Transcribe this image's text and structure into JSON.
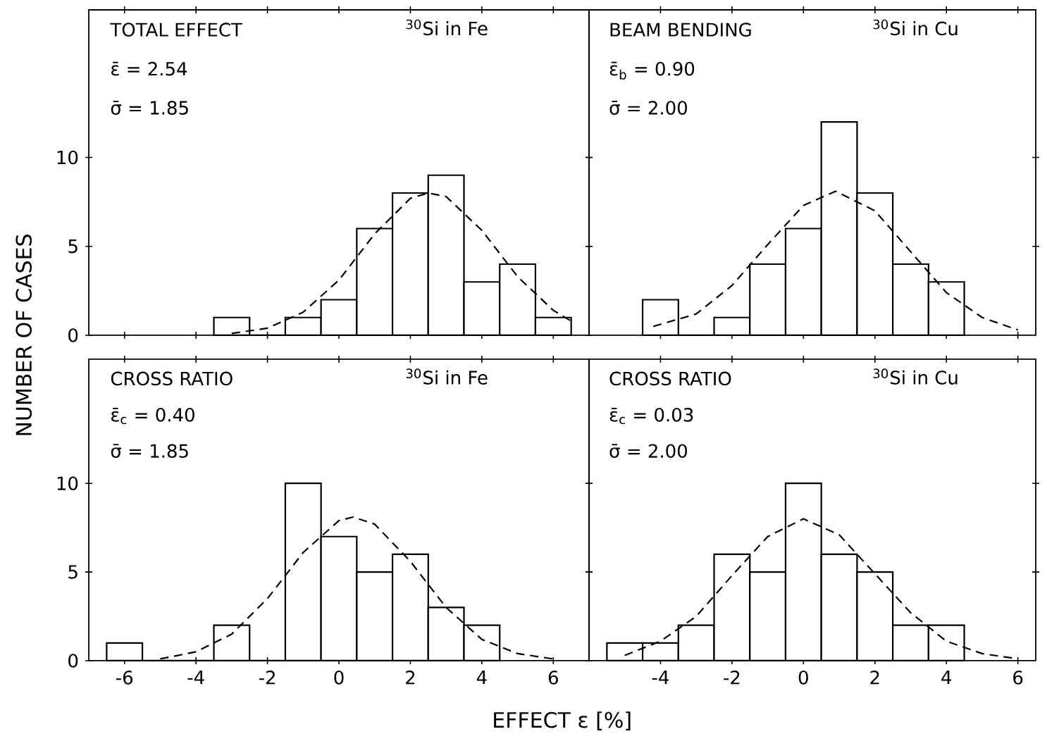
{
  "chart_data": [
    {
      "type": "histogram",
      "title": "TOTAL EFFECT",
      "subtitle": "$^{30}$Si in Fe",
      "ylabel": "NUMBER OF CASES",
      "annotations": [
        "ε̄ = 2.54",
        "σ̄ = 1.85"
      ],
      "xlim": [
        -7,
        7
      ],
      "ylim": [
        0,
        18.3
      ],
      "xticks": [
        -6,
        -4,
        -2,
        0,
        2,
        4,
        6
      ],
      "yticks": [
        0,
        5,
        10
      ],
      "tick_labels": "y",
      "series": [
        {
          "color": "#000000",
          "bins": [
            -3.5,
            -2.5,
            -1.5,
            -0.5,
            0.5,
            1.5,
            2.5,
            3.5,
            4.5,
            5.5,
            6.5
          ],
          "values": [
            1,
            0,
            1,
            2,
            6,
            8,
            9,
            3,
            4,
            1
          ]
        },
        {
          "type": "line",
          "color": "#000000",
          "line_style": "dashed",
          "x": [
            -3,
            -2,
            -1,
            0,
            1,
            2,
            2.5,
            3,
            4,
            5,
            6,
            6.5
          ],
          "values": [
            0.1,
            0.4,
            1.3,
            3.1,
            5.7,
            7.7,
            8.0,
            7.8,
            5.9,
            3.3,
            1.4,
            0.8
          ]
        }
      ]
    },
    {
      "type": "histogram",
      "title": "BEAM BENDING",
      "subtitle": "$^{30}$Si in Cu",
      "annotations": [
        "ε̄$_{b}$ = 0.90",
        "σ̄ = 2.00"
      ],
      "xlim": [
        -6,
        6.5
      ],
      "ylim": [
        0,
        18.3
      ],
      "xticks": [
        -4,
        -2,
        0,
        2,
        4,
        6
      ],
      "yticks": [
        5,
        10
      ],
      "tick_labels": false,
      "series": [
        {
          "color": "#000000",
          "bins": [
            -4.5,
            -3.5,
            -2.5,
            -1.5,
            -0.5,
            0.5,
            1.5,
            2.5,
            3.5,
            4.5
          ],
          "values": [
            2,
            0,
            1,
            4,
            6,
            12,
            8,
            4,
            3
          ]
        },
        {
          "type": "line",
          "color": "#000000",
          "line_style": "dashed",
          "x": [
            -4.2,
            -3,
            -2,
            -1,
            0,
            0.9,
            2,
            3,
            4,
            5,
            6
          ],
          "values": [
            0.5,
            1.2,
            2.8,
            5.1,
            7.3,
            8.1,
            7.0,
            4.7,
            2.4,
            1.0,
            0.3
          ]
        }
      ]
    },
    {
      "type": "histogram",
      "title": "CROSS RATIO",
      "subtitle": "$^{30}$Si in Fe",
      "xlabel": "EFFECT ε [%]",
      "annotations": [
        "ε̄$_{c}$ = 0.40",
        "σ̄ = 1.85"
      ],
      "xlim": [
        -7,
        7
      ],
      "ylim": [
        0,
        17
      ],
      "xticks": [
        -6,
        -4,
        -2,
        0,
        2,
        4,
        6
      ],
      "yticks": [
        0,
        5,
        10
      ],
      "series": [
        {
          "color": "#000000",
          "bins": [
            -6.5,
            -5.5,
            -4.5,
            -3.5,
            -2.5,
            -1.5,
            -0.5,
            0.5,
            1.5,
            2.5,
            3.5,
            4.5
          ],
          "values": [
            1,
            0,
            0,
            2,
            0,
            10,
            7,
            5,
            6,
            3,
            2
          ]
        },
        {
          "type": "line",
          "color": "#000000",
          "line_style": "dashed",
          "x": [
            -5,
            -4,
            -3,
            -2,
            -1,
            0,
            0.4,
            1,
            2,
            3,
            4,
            5,
            6
          ],
          "values": [
            0.1,
            0.5,
            1.5,
            3.5,
            6.1,
            7.9,
            8.1,
            7.7,
            5.6,
            3.0,
            1.2,
            0.4,
            0.1
          ]
        }
      ]
    },
    {
      "type": "histogram",
      "title": "CROSS RATIO",
      "subtitle": "$^{30}$Si in Cu",
      "annotations": [
        "ε̄$_{c}$ = 0.03",
        "σ̄ = 2.00"
      ],
      "xlim": [
        -6,
        6.5
      ],
      "ylim": [
        0,
        17
      ],
      "xticks": [
        -4,
        -2,
        0,
        2,
        4,
        6
      ],
      "yticks": [
        5,
        10
      ],
      "tick_labels": "x",
      "series": [
        {
          "color": "#000000",
          "bins": [
            -5.5,
            -4.5,
            -3.5,
            -2.5,
            -1.5,
            -0.5,
            0.5,
            1.5,
            2.5,
            3.5,
            4.5
          ],
          "values": [
            1,
            1,
            2,
            6,
            5,
            10,
            6,
            5,
            2,
            2
          ]
        },
        {
          "type": "line",
          "color": "#000000",
          "line_style": "dashed",
          "x": [
            -5,
            -4,
            -3,
            -2,
            -1,
            0,
            1,
            2,
            3,
            4,
            5,
            6
          ],
          "values": [
            0.3,
            1.1,
            2.5,
            4.8,
            7.0,
            8.0,
            7.1,
            4.9,
            2.7,
            1.1,
            0.4,
            0.1
          ]
        }
      ]
    }
  ]
}
